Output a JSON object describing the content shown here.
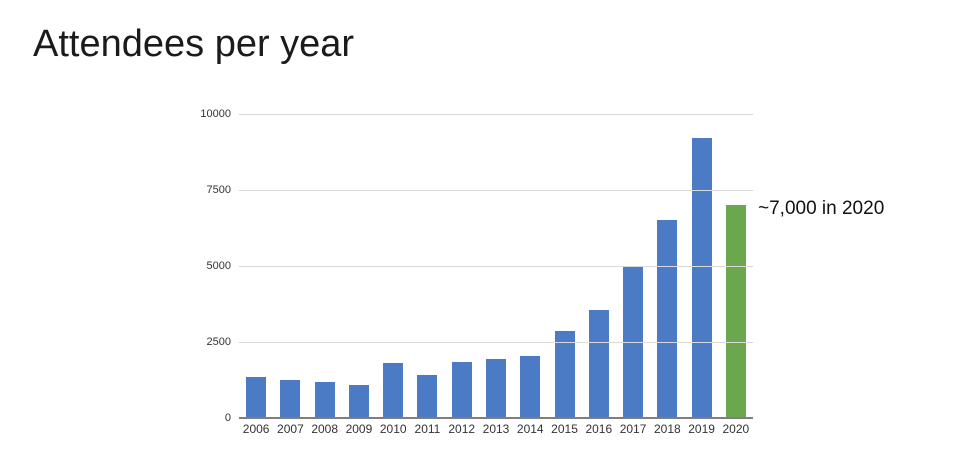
{
  "slide": {
    "title": "Attendees per year",
    "annotation": "~7,000 in 2020"
  },
  "colors": {
    "bar_blue": "#4B7BC4",
    "highlight_green": "#6AA74E",
    "gridline": "#D9D9D9",
    "axis_line": "#7F7F7F",
    "title_text": "#1B1B1B",
    "tick_text": "#333333"
  },
  "chart_data": {
    "type": "bar",
    "title": "Attendees per year",
    "categories": [
      "2006",
      "2007",
      "2008",
      "2009",
      "2010",
      "2011",
      "2012",
      "2013",
      "2014",
      "2015",
      "2016",
      "2017",
      "2018",
      "2019",
      "2020"
    ],
    "values": [
      1350,
      1250,
      1200,
      1100,
      1800,
      1400,
      1850,
      1950,
      2050,
      2850,
      3550,
      5000,
      6500,
      9200,
      7000
    ],
    "highlight_category": "2020",
    "annotation": "~7,000 in 2020",
    "xlabel": "",
    "ylabel": "",
    "ylim": [
      0,
      10000
    ],
    "y_ticks": [
      0,
      2500,
      5000,
      7500,
      10000
    ],
    "grid": "horizontal",
    "legend": "none"
  }
}
